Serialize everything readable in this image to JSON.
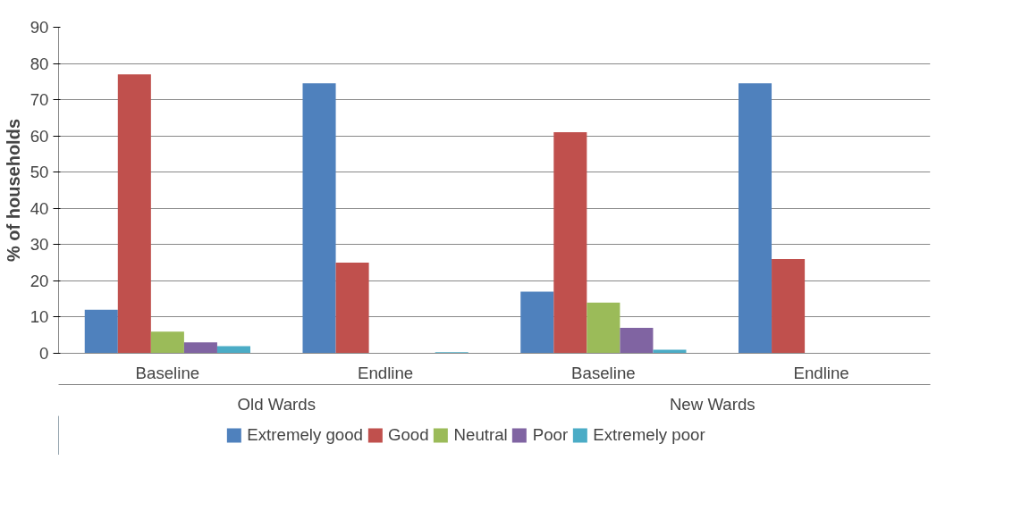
{
  "chart_data": {
    "type": "bar",
    "ylabel": "% of households",
    "categories": [
      "Baseline",
      "Endline",
      "Baseline",
      "Endline"
    ],
    "annotations": [
      "Old Wards",
      "New Wards"
    ],
    "series": [
      {
        "name": "Extremely good",
        "color": "#4f81bd",
        "values": [
          12,
          74.5,
          17,
          74.5
        ]
      },
      {
        "name": "Good",
        "color": "#c0504d",
        "values": [
          77,
          25,
          61,
          26
        ]
      },
      {
        "name": "Neutral",
        "color": "#9bbb59",
        "values": [
          6,
          0,
          14,
          0
        ]
      },
      {
        "name": "Poor",
        "color": "#8064a2",
        "values": [
          3,
          0,
          7,
          0
        ]
      },
      {
        "name": "Extremely poor",
        "color": "#4bacc6",
        "values": [
          2,
          0.3,
          1,
          0
        ]
      }
    ],
    "ylim": [
      0,
      90
    ],
    "yticks": [
      0,
      10,
      20,
      30,
      40,
      50,
      60,
      70,
      80,
      90
    ],
    "grid": "y",
    "legend": "bottom"
  }
}
